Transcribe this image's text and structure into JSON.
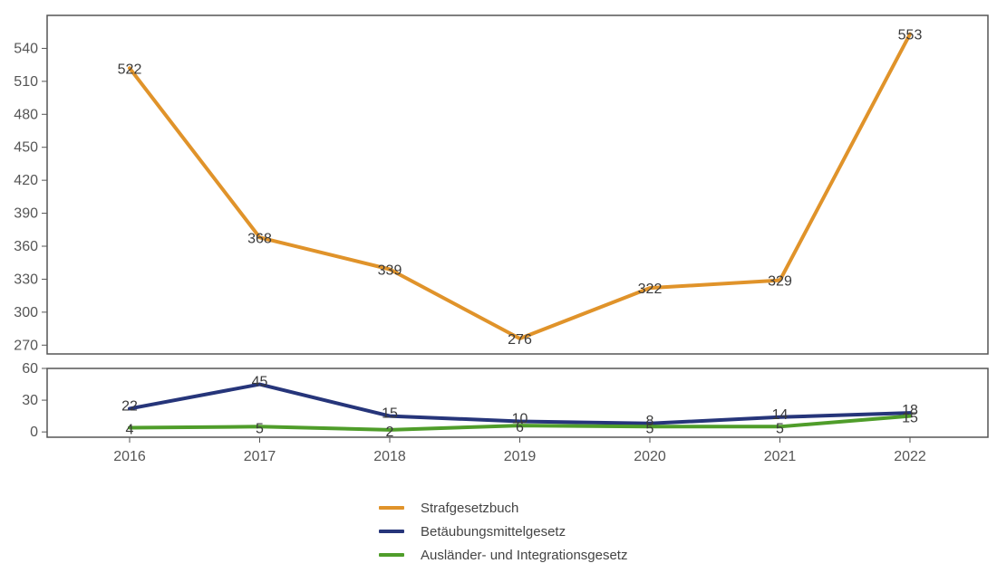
{
  "chart_data": {
    "type": "line",
    "categories": [
      "2016",
      "2017",
      "2018",
      "2019",
      "2020",
      "2021",
      "2022"
    ],
    "series": [
      {
        "name": "Strafgesetzbuch",
        "color": "#e0932a",
        "values": [
          522,
          368,
          339,
          276,
          322,
          329,
          553
        ]
      },
      {
        "name": "Betäubungsmittelgesetz",
        "color": "#26357a",
        "values": [
          22,
          45,
          15,
          10,
          8,
          14,
          18
        ]
      },
      {
        "name": "Ausländer- und Integrationsgesetz",
        "color": "#4f9d2a",
        "values": [
          4,
          5,
          2,
          6,
          5,
          5,
          15
        ]
      }
    ],
    "panels": [
      {
        "ylim": [
          262,
          570
        ],
        "yticks": [
          270,
          300,
          330,
          360,
          390,
          420,
          450,
          480,
          510,
          540
        ]
      },
      {
        "ylim": [
          -5,
          60
        ],
        "yticks": [
          0,
          30,
          60
        ]
      }
    ],
    "grid": false,
    "legend_position": "bottom"
  }
}
